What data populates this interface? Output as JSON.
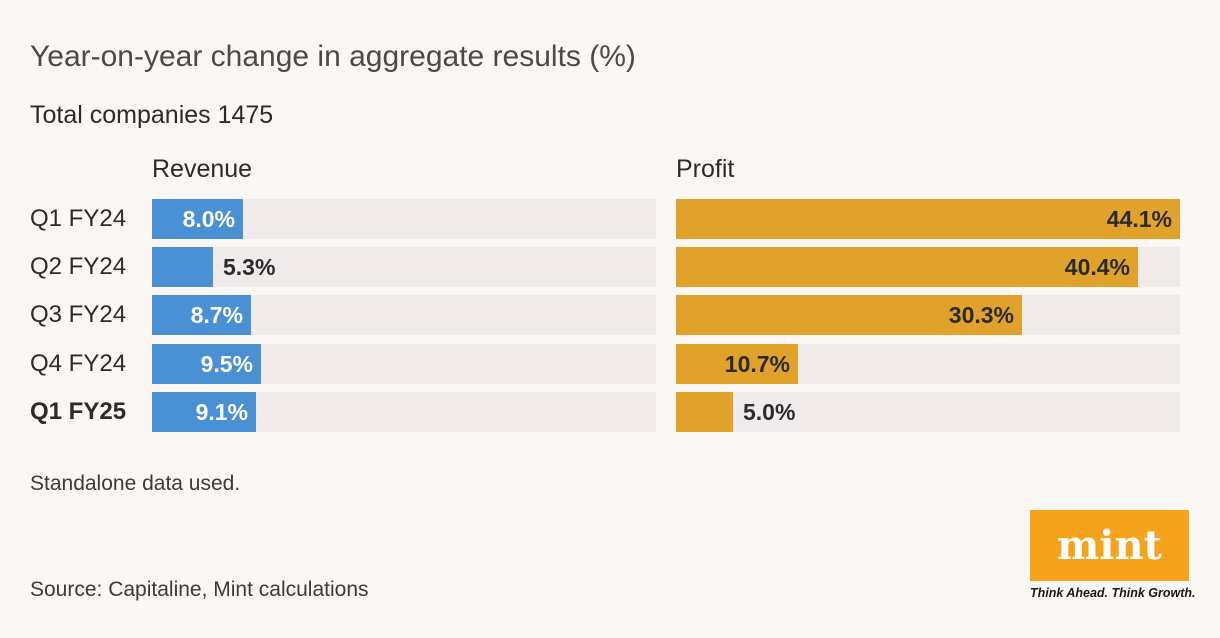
{
  "title": "Year-on-year change in aggregate results (%)",
  "subtitle": "Total companies 1475",
  "note": "Standalone data used.",
  "source": "Source: Capitaline, Mint calculations",
  "logo": {
    "word": "mint",
    "tagline": "Think Ahead. Think Growth.",
    "color": "#f5a31a"
  },
  "colors": {
    "revenue": "#4a90d4",
    "profit": "#e0a22a",
    "track": "#f0ebea"
  },
  "chart_data": {
    "type": "bar",
    "orientation": "horizontal",
    "categories": [
      "Q1 FY24",
      "Q2 FY24",
      "Q3 FY24",
      "Q4 FY24",
      "Q1 FY25"
    ],
    "highlight_category": "Q1 FY25",
    "panels": [
      {
        "name": "Revenue",
        "values": [
          8.0,
          5.3,
          8.7,
          9.5,
          9.1
        ],
        "labels": [
          "8.0%",
          "5.3%",
          "8.7%",
          "9.5%",
          "9.1%"
        ],
        "xlim": [
          0,
          44.1
        ]
      },
      {
        "name": "Profit",
        "values": [
          44.1,
          40.4,
          30.3,
          10.7,
          5.0
        ],
        "labels": [
          "44.1%",
          "40.4%",
          "30.3%",
          "10.7%",
          "5.0%"
        ],
        "xlim": [
          0,
          44.1
        ]
      }
    ]
  }
}
